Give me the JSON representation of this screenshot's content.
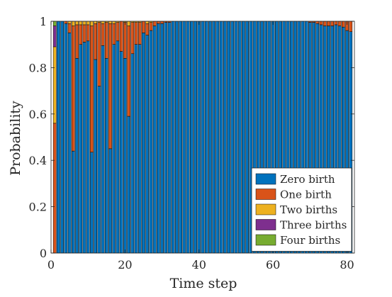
{
  "chart_data": {
    "type": "bar",
    "stacked": true,
    "title": "",
    "xlabel": "Time step",
    "ylabel": "Probability",
    "xlim": [
      0,
      82
    ],
    "ylim": [
      0,
      1
    ],
    "xticks": [
      0,
      20,
      40,
      60,
      80
    ],
    "yticks": [
      0,
      0.2,
      0.4,
      0.6,
      0.8,
      1
    ],
    "ytick_labels": [
      "0",
      "0.2",
      "0.4",
      "0.6",
      "0.8",
      "1"
    ],
    "grid": false,
    "legend_position": "bottom-right",
    "x": [
      1,
      2,
      3,
      4,
      5,
      6,
      7,
      8,
      9,
      10,
      11,
      12,
      13,
      14,
      15,
      16,
      17,
      18,
      19,
      20,
      21,
      22,
      23,
      24,
      25,
      26,
      27,
      28,
      29,
      30,
      31,
      32,
      33,
      34,
      35,
      36,
      37,
      38,
      39,
      40,
      41,
      42,
      43,
      44,
      45,
      46,
      47,
      48,
      49,
      50,
      51,
      52,
      53,
      54,
      55,
      56,
      57,
      58,
      59,
      60,
      61,
      62,
      63,
      64,
      65,
      66,
      67,
      68,
      69,
      70,
      71,
      72,
      73,
      74,
      75,
      76,
      77,
      78,
      79,
      80,
      81
    ],
    "series": [
      {
        "name": "Zero birth",
        "color": "#0072BD",
        "values": [
          0,
          1,
          1,
          0.99,
          0.95,
          0.44,
          0.84,
          0.9,
          0.91,
          0.915,
          0.435,
          0.835,
          0.72,
          0.895,
          0.84,
          0.45,
          0.9,
          0.915,
          0.87,
          0.84,
          0.59,
          0.86,
          0.9,
          0.9,
          0.95,
          0.94,
          0.96,
          0.98,
          0.99,
          0.99,
          0.995,
          0.995,
          1,
          1,
          1,
          1,
          1,
          1,
          1,
          1,
          1,
          1,
          1,
          1,
          1,
          1,
          1,
          1,
          1,
          1,
          1,
          1,
          1,
          1,
          1,
          1,
          1,
          1,
          1,
          1,
          1,
          1,
          1,
          1,
          1,
          1,
          1,
          1,
          1,
          0.995,
          0.995,
          0.99,
          0.985,
          0.98,
          0.98,
          0.98,
          0.985,
          0.98,
          0.975,
          0.96,
          0.955
        ]
      },
      {
        "name": "One birth",
        "color": "#D95319",
        "values": [
          0.56,
          0,
          0,
          0.01,
          0.04,
          0.54,
          0.145,
          0.085,
          0.075,
          0.07,
          0.545,
          0.155,
          0.275,
          0.095,
          0.155,
          0.54,
          0.09,
          0.08,
          0.13,
          0.155,
          0.39,
          0.135,
          0.095,
          0.095,
          0.05,
          0.05,
          0.035,
          0.02,
          0.01,
          0.01,
          0.005,
          0.005,
          0,
          0,
          0,
          0,
          0,
          0,
          0,
          0,
          0,
          0,
          0,
          0,
          0,
          0,
          0,
          0,
          0,
          0,
          0,
          0,
          0,
          0,
          0,
          0,
          0,
          0,
          0,
          0,
          0,
          0,
          0,
          0,
          0,
          0,
          0,
          0,
          0,
          0.005,
          0.005,
          0.01,
          0.015,
          0.02,
          0.02,
          0.02,
          0.015,
          0.02,
          0.025,
          0.04,
          0.045
        ]
      },
      {
        "name": "Two births",
        "color": "#EDB120",
        "values": [
          0.33,
          0,
          0,
          0,
          0.01,
          0.02,
          0.015,
          0.015,
          0.015,
          0.015,
          0.02,
          0.01,
          0.005,
          0.01,
          0.005,
          0.01,
          0.01,
          0.005,
          0,
          0.005,
          0.02,
          0.005,
          0.005,
          0.005,
          0,
          0.01,
          0.005,
          0,
          0,
          0,
          0,
          0,
          0,
          0,
          0,
          0,
          0,
          0,
          0,
          0,
          0,
          0,
          0,
          0,
          0,
          0,
          0,
          0,
          0,
          0,
          0,
          0,
          0,
          0,
          0,
          0,
          0,
          0,
          0,
          0,
          0,
          0,
          0,
          0,
          0,
          0,
          0,
          0,
          0,
          0,
          0,
          0,
          0,
          0,
          0,
          0,
          0,
          0,
          0,
          0,
          0
        ]
      },
      {
        "name": "Three births",
        "color": "#7E2F8E",
        "values": [
          0.09,
          0,
          0,
          0,
          0,
          0,
          0,
          0,
          0,
          0,
          0,
          0,
          0,
          0,
          0,
          0,
          0,
          0,
          0,
          0,
          0,
          0,
          0,
          0,
          0,
          0,
          0,
          0,
          0,
          0,
          0,
          0,
          0,
          0,
          0,
          0,
          0,
          0,
          0,
          0,
          0,
          0,
          0,
          0,
          0,
          0,
          0,
          0,
          0,
          0,
          0,
          0,
          0,
          0,
          0,
          0,
          0,
          0,
          0,
          0,
          0,
          0,
          0,
          0,
          0,
          0,
          0,
          0,
          0,
          0,
          0,
          0,
          0,
          0,
          0,
          0,
          0,
          0,
          0,
          0,
          0
        ]
      },
      {
        "name": "Four births",
        "color": "#77AC30",
        "values": [
          0.02,
          0,
          0,
          0,
          0,
          0,
          0,
          0,
          0,
          0,
          0,
          0,
          0,
          0,
          0,
          0,
          0,
          0,
          0,
          0,
          0,
          0,
          0,
          0,
          0,
          0,
          0,
          0,
          0,
          0,
          0,
          0,
          0,
          0,
          0,
          0,
          0,
          0,
          0,
          0,
          0,
          0,
          0,
          0,
          0,
          0,
          0,
          0,
          0,
          0,
          0,
          0,
          0,
          0,
          0,
          0,
          0,
          0,
          0,
          0,
          0,
          0,
          0,
          0,
          0,
          0,
          0,
          0,
          0,
          0,
          0,
          0,
          0,
          0,
          0,
          0,
          0,
          0,
          0,
          0,
          0
        ]
      }
    ]
  }
}
